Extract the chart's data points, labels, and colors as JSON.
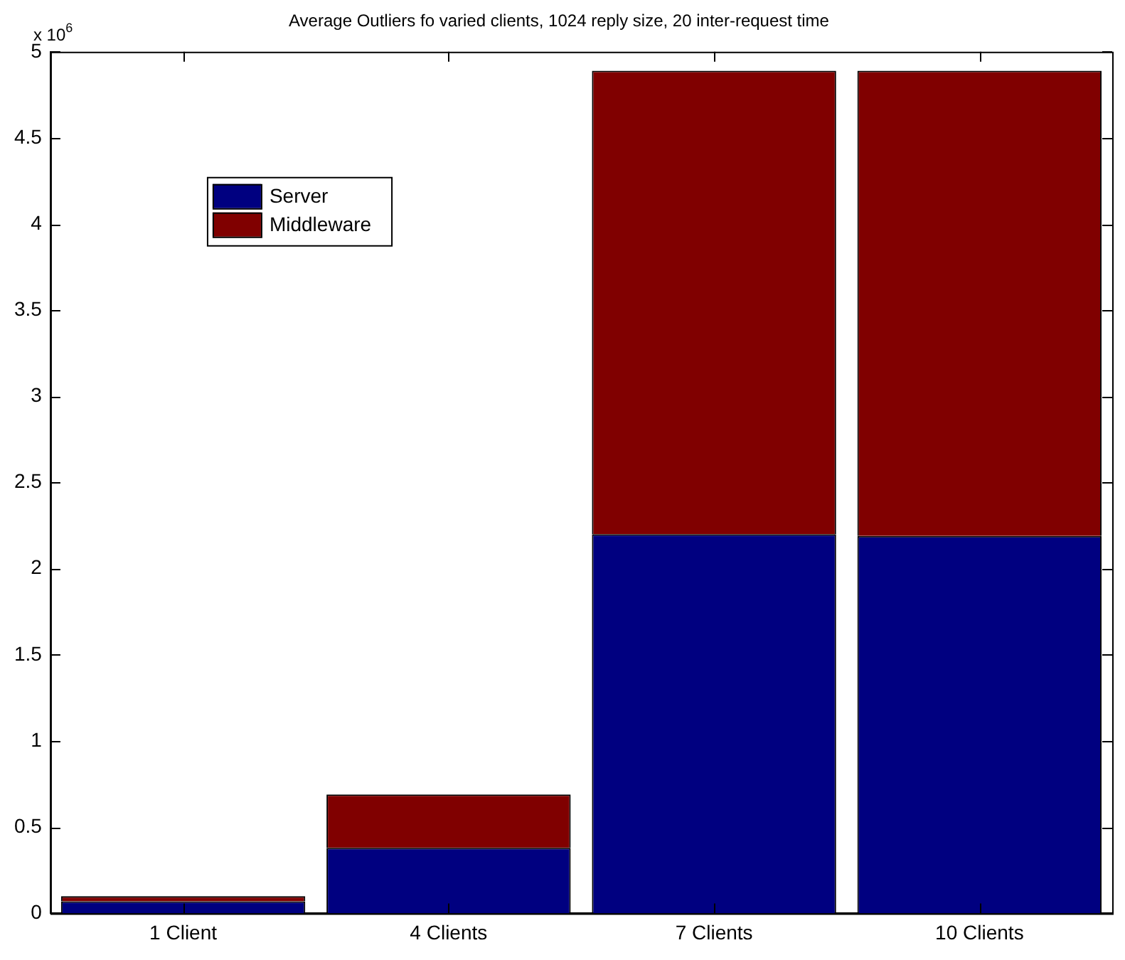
{
  "chart_data": {
    "type": "bar",
    "title": "Average Outliers fo varied clients, 1024 reply size, 20 inter-request time",
    "categories": [
      "1 Client",
      "4 Clients",
      "7 Clients",
      "10 Clients"
    ],
    "series": [
      {
        "name": "Server",
        "color": "#000080",
        "values": [
          0.07,
          0.38,
          2.2,
          2.19
        ]
      },
      {
        "name": "Middleware",
        "color": "#800000",
        "values": [
          0.03,
          0.31,
          2.69,
          2.7
        ]
      }
    ],
    "stacked": true,
    "ylim": [
      0,
      5
    ],
    "yticks": [
      0,
      0.5,
      1,
      1.5,
      2,
      2.5,
      3,
      3.5,
      4,
      4.5,
      5
    ],
    "annotations": [
      "x 10$^{6}$"
    ],
    "legend": "top left",
    "grid": false
  }
}
